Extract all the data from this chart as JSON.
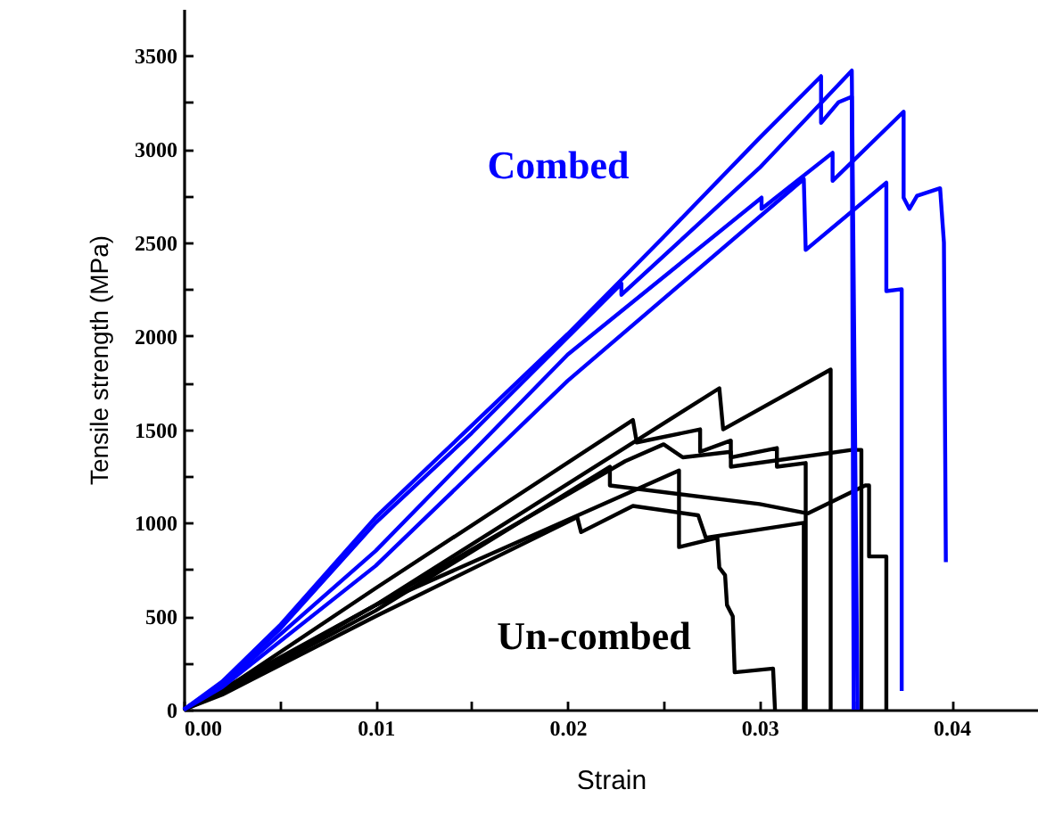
{
  "chart_data": {
    "type": "line",
    "xlabel": "Strain",
    "ylabel": "Tensile strength (MPa)",
    "xlim": [
      0,
      0.0445
    ],
    "ylim": [
      0,
      3750
    ],
    "xticks": [
      {
        "value": 0,
        "label": "0.00"
      },
      {
        "value": 0.005,
        "label": null
      },
      {
        "value": 0.01,
        "label": "0.01"
      },
      {
        "value": 0.015,
        "label": null
      },
      {
        "value": 0.02,
        "label": "0.02"
      },
      {
        "value": 0.025,
        "label": null
      },
      {
        "value": 0.03,
        "label": "0.03"
      },
      {
        "value": 0.035,
        "label": null
      },
      {
        "value": 0.04,
        "label": "0.04"
      }
    ],
    "yticks": [
      0,
      {
        "value": 250,
        "label": null
      },
      500,
      {
        "value": 750,
        "label": null
      },
      1000,
      {
        "value": 1250,
        "label": null
      },
      1500,
      {
        "value": 1750,
        "label": null
      },
      2000,
      {
        "value": 2250,
        "label": null
      },
      2500,
      {
        "value": 2750,
        "label": null
      },
      3000,
      {
        "value": 3250,
        "label": null
      },
      3500
    ],
    "grid": false,
    "line_style": "solid",
    "marker": "none",
    "series": [
      {
        "color": "#000000",
        "x": [
          0,
          0.002,
          0.01,
          0.0279,
          0.0281,
          0.0337,
          0.0337
        ],
        "values": [
          0,
          110,
          560,
          1720,
          1500,
          1820,
          0
        ]
      },
      {
        "color": "#000000",
        "x": [
          0,
          0.002,
          0.01,
          0.0234,
          0.0236,
          0.0269,
          0.0269,
          0.0285,
          0.0285,
          0.0309,
          0.0309,
          0.0324,
          0.0324
        ],
        "values": [
          0,
          100,
          650,
          1550,
          1430,
          1500,
          1380,
          1440,
          1350,
          1400,
          1300,
          1320,
          0
        ]
      },
      {
        "color": "#000000",
        "x": [
          0,
          0.002,
          0.01,
          0.023,
          0.025,
          0.026,
          0.0285,
          0.0285,
          0.0348,
          0.0353,
          0.0353
        ],
        "values": [
          0,
          90,
          560,
          1330,
          1420,
          1350,
          1380,
          1300,
          1390,
          1390,
          0
        ]
      },
      {
        "color": "#000000",
        "x": [
          0,
          0.002,
          0.01,
          0.0222,
          0.0222,
          0.03,
          0.0325,
          0.0355,
          0.0357,
          0.0357,
          0.0366,
          0.0366
        ],
        "values": [
          0,
          90,
          530,
          1300,
          1200,
          1100,
          1050,
          1200,
          1200,
          820,
          820,
          0
        ]
      },
      {
        "color": "#000000",
        "x": [
          0,
          0.002,
          0.01,
          0.0205,
          0.0207,
          0.0234,
          0.0268,
          0.0272,
          0.0323,
          0.0323
        ],
        "values": [
          0,
          80,
          500,
          1030,
          950,
          1090,
          1040,
          920,
          1000,
          0
        ]
      },
      {
        "color": "#000000",
        "x": [
          0,
          0.002,
          0.01,
          0.0258,
          0.0258,
          0.0278,
          0.0279,
          0.0282,
          0.0283,
          0.0286,
          0.0287,
          0.0307,
          0.0308
        ],
        "values": [
          0,
          100,
          560,
          1280,
          870,
          920,
          760,
          720,
          560,
          500,
          200,
          220,
          0
        ]
      },
      {
        "color": "#0000ff",
        "x": [
          0,
          0.002,
          0.005,
          0.01,
          0.015,
          0.02,
          0.025,
          0.03,
          0.0332,
          0.0332,
          0.0341,
          0.0348,
          0.0349
        ],
        "values": [
          0,
          150,
          450,
          1030,
          1520,
          2010,
          2530,
          3060,
          3390,
          3140,
          3250,
          3280,
          0
        ]
      },
      {
        "color": "#0000ff",
        "x": [
          0,
          0.002,
          0.005,
          0.01,
          0.015,
          0.0228,
          0.0228,
          0.03,
          0.0348,
          0.0351
        ],
        "values": [
          0,
          140,
          430,
          1000,
          1480,
          2280,
          2220,
          2900,
          3420,
          0
        ]
      },
      {
        "color": "#0000ff",
        "x": [
          0,
          0.002,
          0.01,
          0.02,
          0.0301,
          0.0301,
          0.0338,
          0.0338,
          0.0375,
          0.0375,
          0.0378,
          0.0382,
          0.0394,
          0.0396,
          0.0397
        ],
        "values": [
          0,
          130,
          850,
          1900,
          2740,
          2680,
          2980,
          2830,
          3200,
          2740,
          2680,
          2750,
          2790,
          2500,
          790
        ]
      },
      {
        "color": "#0000ff",
        "x": [
          0,
          0.002,
          0.01,
          0.02,
          0.0323,
          0.0324,
          0.0366,
          0.0366,
          0.0374,
          0.0374
        ],
        "values": [
          0,
          120,
          770,
          1760,
          2840,
          2460,
          2820,
          2240,
          2250,
          100
        ]
      }
    ],
    "annotations": [
      "Combed",
      "Un-combed"
    ]
  }
}
